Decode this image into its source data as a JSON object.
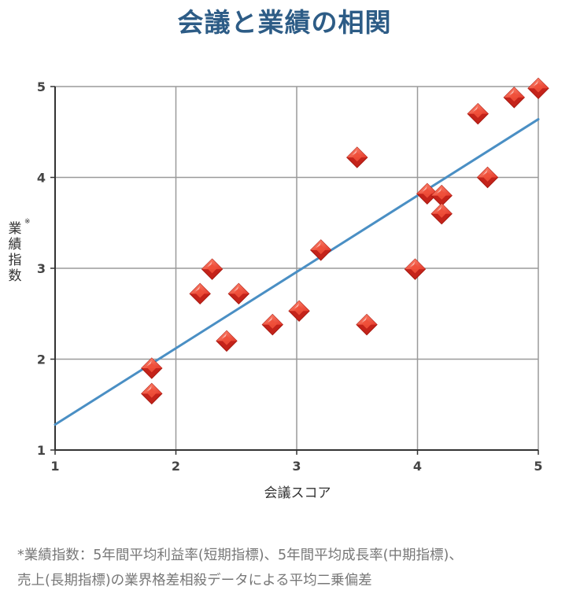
{
  "chart_data": {
    "type": "scatter",
    "title": "会議と業績の相関",
    "xlabel": "会議スコア",
    "ylabel": "業績指数",
    "ylabel_mark": "※",
    "xlim": [
      1,
      5
    ],
    "ylim": [
      1,
      5
    ],
    "x_ticks": [
      "1",
      "2",
      "3",
      "4",
      "5"
    ],
    "y_ticks": [
      "1",
      "2",
      "3",
      "4",
      "5"
    ],
    "grid": true,
    "points": [
      {
        "x": 1.8,
        "y": 1.62
      },
      {
        "x": 1.8,
        "y": 1.9
      },
      {
        "x": 2.2,
        "y": 2.72
      },
      {
        "x": 2.3,
        "y": 2.99
      },
      {
        "x": 2.42,
        "y": 2.2
      },
      {
        "x": 2.52,
        "y": 2.72
      },
      {
        "x": 2.8,
        "y": 2.38
      },
      {
        "x": 3.02,
        "y": 2.53
      },
      {
        "x": 3.2,
        "y": 3.2
      },
      {
        "x": 3.5,
        "y": 4.22
      },
      {
        "x": 3.58,
        "y": 2.38
      },
      {
        "x": 3.98,
        "y": 2.99
      },
      {
        "x": 4.08,
        "y": 3.82
      },
      {
        "x": 4.2,
        "y": 3.8
      },
      {
        "x": 4.2,
        "y": 3.6
      },
      {
        "x": 4.5,
        "y": 4.7
      },
      {
        "x": 4.58,
        "y": 4.0
      },
      {
        "x": 4.8,
        "y": 4.88
      },
      {
        "x": 5.0,
        "y": 4.98
      }
    ],
    "trendline": {
      "x": [
        1,
        5
      ],
      "y": [
        1.28,
        4.64
      ]
    },
    "colors": {
      "marker": "#e53b2c",
      "trendline": "#4a8fc4",
      "title": "#2d5c86",
      "grid": "#9a9a9a"
    }
  },
  "footnote": {
    "line1": "*業績指数：5年間平均利益率(短期指標)、5年間平均成長率(中期指標)、",
    "line2": "売上(長期指標)の業界格差相殺データによる平均二乗偏差"
  }
}
